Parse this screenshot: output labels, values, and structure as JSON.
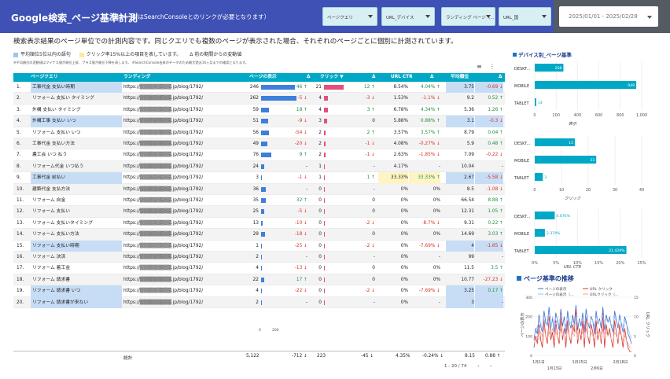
{
  "header": {
    "title": "Google検索_ページ基準計測",
    "subtitle": "（本ページはSearchConsoleとのリンクが必要となります）",
    "filters": [
      "ページクエリ",
      "URL_デバイス",
      "ランディング ページ（...",
      "URL_国"
    ],
    "date_range": "2025/01/01 - 2025/02/28"
  },
  "intro": "検索表示結果のページ単位での計測内容です。同じクエリでも複数のページが表示された場合、それぞれのページごとに個別に計測されています。",
  "legend": {
    "items": [
      {
        "label": "平均順位5位以内の語句",
        "color": "#9fc5f0"
      },
      {
        "label": "クリック率15%以上の項目を表しています。",
        "color": "#ffe89a"
      },
      {
        "label": "Δ 前の期間からの変動値",
        "color": ""
      }
    ],
    "note": "※平均順位の変動値はマイナス値が順位上昇、プラス値が順位下降を表します。 ※SearchConsole出来のデータのため最大過去16ヶ月までの確認となります。"
  },
  "table": {
    "headers": [
      "ページクエリ",
      "ランディング",
      "ページの表示",
      "Δ",
      "クリック ▼",
      "Δ",
      "URL CTR",
      "Δ",
      "平均順位",
      "Δ"
    ],
    "rows": [
      {
        "n": "1.",
        "q": "工事代金 支払い時期",
        "url": "https://▒▒▒▒▒▒▒▒▒.jp/blog/1792/",
        "imp": "246",
        "impd": "46 ↑",
        "clk": "21",
        "clkd": "12 ↑",
        "ctr": "8.54%",
        "ctrd": "4.04% ↑",
        "pos": "3.75",
        "posd": "-0.69 ↓",
        "qh": true,
        "ph": true,
        "ch": false
      },
      {
        "n": "2.",
        "q": "リフォーム 支払い タイミング",
        "url": "https://▒▒▒▒▒▒▒▒▒.jp/blog/1792/",
        "imp": "262",
        "impd": "-5 ↓",
        "clk": "4",
        "clkd": "-3 ↓",
        "ctr": "1.53%",
        "ctrd": "-1.1% ↓",
        "pos": "9.2",
        "posd": "0.52 ↑",
        "qh": false,
        "ph": false,
        "ch": false
      },
      {
        "n": "3.",
        "q": "外構 支払い タイミング",
        "url": "https://▒▒▒▒▒▒▒▒▒.jp/blog/1792/",
        "imp": "59",
        "impd": "18 ↑",
        "clk": "4",
        "clkd": "3 ↑",
        "ctr": "6.78%",
        "ctrd": "4.34% ↑",
        "pos": "5.36",
        "posd": "1.26 ↑",
        "qh": false,
        "ph": false,
        "ch": false
      },
      {
        "n": "4.",
        "q": "外構工事 支払い いつ",
        "url": "https://▒▒▒▒▒▒▒▒▒.jp/blog/1792/",
        "imp": "51",
        "impd": "-9 ↓",
        "clk": "3",
        "clkd": "0",
        "ctr": "5.88%",
        "ctrd": "0.88% ↑",
        "pos": "3.1",
        "posd": "-0.3 ↓",
        "qh": true,
        "ph": true,
        "ch": false
      },
      {
        "n": "5.",
        "q": "リフォーム 支払い いつ",
        "url": "https://▒▒▒▒▒▒▒▒▒.jp/blog/1792/",
        "imp": "56",
        "impd": "-54 ↓",
        "clk": "2",
        "clkd": "2 ↑",
        "ctr": "3.57%",
        "ctrd": "3.57% ↑",
        "pos": "8.79",
        "posd": "0.04 ↑",
        "qh": false,
        "ph": false,
        "ch": false
      },
      {
        "n": "6.",
        "q": "工事代金 支払い方法",
        "url": "https://▒▒▒▒▒▒▒▒▒.jp/blog/1792/",
        "imp": "49",
        "impd": "-20 ↓",
        "clk": "2",
        "clkd": "-1 ↓",
        "ctr": "4.08%",
        "ctrd": "-0.27% ↓",
        "pos": "5.9",
        "posd": "0.48 ↑",
        "qh": false,
        "ph": false,
        "ch": false
      },
      {
        "n": "7.",
        "q": "農工会 いつ 払う",
        "url": "https://▒▒▒▒▒▒▒▒▒.jp/blog/1792/",
        "imp": "76",
        "impd": "9 ↑",
        "clk": "2",
        "clkd": "-1 ↓",
        "ctr": "2.63%",
        "ctrd": "-1.85% ↓",
        "pos": "7.09",
        "posd": "-0.22 ↓",
        "qh": false,
        "ph": false,
        "ch": false
      },
      {
        "n": "8.",
        "q": "リフォーム代金 いつ払う",
        "url": "https://▒▒▒▒▒▒▒▒▒.jp/blog/1792/",
        "imp": "24",
        "impd": "-",
        "clk": "1",
        "clkd": "-",
        "ctr": "4.17%",
        "ctrd": "-",
        "pos": "10.04",
        "posd": "-",
        "qh": false,
        "ph": false,
        "ch": false
      },
      {
        "n": "9.",
        "q": "工事代金 前払い",
        "url": "https://▒▒▒▒▒▒▒▒▒.jp/blog/1792/",
        "imp": "3",
        "impd": "-1 ↓",
        "clk": "1",
        "clkd": "1 ↑",
        "ctr": "33.33%",
        "ctrd": "33.33% ↑",
        "pos": "2.67",
        "posd": "-5.58 ↓",
        "qh": true,
        "ph": true,
        "ch": true
      },
      {
        "n": "10.",
        "q": "建築代金 支払方法",
        "url": "https://▒▒▒▒▒▒▒▒▒.jp/blog/1792/",
        "imp": "36",
        "impd": "-",
        "clk": "0",
        "clkd": "-",
        "ctr": "0%",
        "ctrd": "0%",
        "pos": "8.5",
        "posd": "-1.08 ↓",
        "qh": false,
        "ph": false,
        "ch": false
      },
      {
        "n": "11.",
        "q": "リフォーム 自金",
        "url": "https://▒▒▒▒▒▒▒▒▒.jp/blog/1792/",
        "imp": "35",
        "impd": "32 ↑",
        "clk": "0",
        "clkd": "0",
        "ctr": "0%",
        "ctrd": "0%",
        "pos": "66.54",
        "posd": "8.88 ↑",
        "qh": false,
        "ph": false,
        "ch": false
      },
      {
        "n": "12.",
        "q": "リフォーム 支払い",
        "url": "https://▒▒▒▒▒▒▒▒▒.jp/blog/1792/",
        "imp": "25",
        "impd": "-5 ↓",
        "clk": "0",
        "clkd": "0",
        "ctr": "0%",
        "ctrd": "0%",
        "pos": "12.31",
        "posd": "1.05 ↑",
        "qh": false,
        "ph": false,
        "ch": false
      },
      {
        "n": "13.",
        "q": "リフォーム 支払いタイミング",
        "url": "https://▒▒▒▒▒▒▒▒▒.jp/blog/1792/",
        "imp": "13",
        "impd": "-10 ↓",
        "clk": "0",
        "clkd": "-2 ↓",
        "ctr": "0%",
        "ctrd": "-8.7% ↓",
        "pos": "9.31",
        "posd": "0.22 ↑",
        "qh": false,
        "ph": false,
        "ch": false
      },
      {
        "n": "14.",
        "q": "リフォーム 支払い方法",
        "url": "https://▒▒▒▒▒▒▒▒▒.jp/blog/1792/",
        "imp": "29",
        "impd": "-18 ↓",
        "clk": "0",
        "clkd": "0",
        "ctr": "0%",
        "ctrd": "0%",
        "pos": "14.69",
        "posd": "3.03 ↑",
        "qh": false,
        "ph": false,
        "ch": false
      },
      {
        "n": "15.",
        "q": "リフォーム 支払い時期",
        "url": "https://▒▒▒▒▒▒▒▒▒.jp/blog/1792/",
        "imp": "1",
        "impd": "-25 ↓",
        "clk": "0",
        "clkd": "-2 ↓",
        "ctr": "0%",
        "ctrd": "-7.69% ↓",
        "pos": "4",
        "posd": "-1.65 ↓",
        "qh": true,
        "ph": true,
        "ch": false
      },
      {
        "n": "16.",
        "q": "リフォーム 決済",
        "url": "https://▒▒▒▒▒▒▒▒▒.jp/blog/1792/",
        "imp": "2",
        "impd": "-",
        "clk": "0",
        "clkd": "-",
        "ctr": "0%",
        "ctrd": "-",
        "pos": "99",
        "posd": "-",
        "qh": false,
        "ph": false,
        "ch": false
      },
      {
        "n": "17.",
        "q": "リフォーム 着工金",
        "url": "https://▒▒▒▒▒▒▒▒▒.jp/blog/1792/",
        "imp": "4",
        "impd": "-13 ↓",
        "clk": "0",
        "clkd": "0",
        "ctr": "0%",
        "ctrd": "0%",
        "pos": "11.5",
        "posd": "3.5 ↑",
        "qh": false,
        "ph": false,
        "ch": false
      },
      {
        "n": "18.",
        "q": "リフォーム 請求書",
        "url": "https://▒▒▒▒▒▒▒▒▒.jp/blog/1792/",
        "imp": "22",
        "impd": "17 ↑",
        "clk": "0",
        "clkd": "0",
        "ctr": "0%",
        "ctrd": "0%",
        "pos": "10.77",
        "posd": "-27.23 ↓",
        "qh": false,
        "ph": false,
        "ch": false
      },
      {
        "n": "19.",
        "q": "リフォーム 請求書 いつ",
        "url": "https://▒▒▒▒▒▒▒▒▒.jp/blog/1792/",
        "imp": "4",
        "impd": "-22 ↓",
        "clk": "0",
        "clkd": "-2 ↓",
        "ctr": "0%",
        "ctrd": "-7.69% ↓",
        "pos": "3.25",
        "posd": "0.17 ↑",
        "qh": true,
        "ph": true,
        "ch": false
      },
      {
        "n": "20.",
        "q": "リフォーム 請求書が来ない",
        "url": "https://▒▒▒▒▒▒▒▒▒.jp/blog/1792/",
        "imp": "2",
        "impd": "-",
        "clk": "0",
        "clkd": "-",
        "ctr": "0%",
        "ctrd": "-",
        "pos": "3",
        "posd": "-",
        "qh": true,
        "ph": true,
        "ch": false
      }
    ],
    "axis_ticks": [
      "0",
      "200"
    ],
    "totals": {
      "label": "総計",
      "imp": "5,122",
      "impd": "-712 ↓",
      "clk": "223",
      "clkd": "-45 ↓",
      "ctr": "4.35%",
      "ctrd": "-0.24% ↓",
      "pos": "8.15",
      "posd": "0.88 ↑"
    },
    "pager": "1 - 20 / 74"
  },
  "chart_data": [
    {
      "type": "bar",
      "title": "デバイス別_ページ基準",
      "xlabel": "表示",
      "categories": [
        "DESKT...",
        "MOBILE",
        "TABLET"
      ],
      "values": [
        268,
        949,
        14
      ],
      "value_labels": [
        "268",
        "949",
        "14"
      ],
      "xlim": [
        0,
        1000
      ],
      "ticks": [
        "0",
        "200",
        "400",
        "600",
        "800",
        "1,000"
      ],
      "color": "#00a8c6"
    },
    {
      "type": "bar",
      "xlabel": "クリック",
      "categories": [
        "DESKT...",
        "MOBILE",
        "TABLET"
      ],
      "values": [
        15,
        23,
        3
      ],
      "value_labels": [
        "15",
        "23",
        "3"
      ],
      "xlim": [
        0,
        40
      ],
      "ticks": [
        "0",
        "10",
        "20",
        "30",
        "40"
      ],
      "color": "#00a8c6"
    },
    {
      "type": "bar",
      "xlabel": "URL CTR",
      "categories": [
        "DESKT...",
        "MOBILE",
        "TABLET"
      ],
      "values": [
        4.676,
        2.374,
        21.429
      ],
      "value_labels": [
        "4.676%",
        "2.374%",
        "21.429%"
      ],
      "xlim": [
        0,
        25
      ],
      "ticks": [
        "0%",
        "5%",
        "10%",
        "15%",
        "20%",
        "25%"
      ],
      "color": "#00a8c6"
    },
    {
      "type": "line",
      "title": "ページ基準の推移",
      "ylabel": "ページの表示",
      "y2label": "URL クリック",
      "x_ticks": [
        "1月1日",
        "1月13日",
        "1月25日",
        "2月6日",
        "2月18日"
      ],
      "ylim": [
        0,
        300
      ],
      "y_ticks": [
        "0",
        "100",
        "200",
        "300"
      ],
      "y2lim": [
        0,
        15
      ],
      "y2_ticks": [
        "0",
        "5",
        "10",
        "15"
      ],
      "series": [
        {
          "name": "ページの表示",
          "axis": "left",
          "color": "#3d6fd6",
          "values": [
            80,
            140,
            110,
            210,
            150,
            120,
            230,
            170,
            160,
            250,
            140,
            190,
            120,
            220,
            180,
            130,
            240,
            150,
            200,
            110,
            230,
            170,
            140,
            210,
            160,
            260,
            130,
            190,
            150,
            220,
            120,
            240,
            170,
            140,
            200,
            180,
            110,
            230,
            160,
            190,
            140,
            250,
            130,
            210,
            170,
            200,
            150,
            120,
            230,
            180,
            140,
            210,
            160,
            120,
            200,
            170,
            110,
            90,
            60
          ]
        },
        {
          "name": "URL クリック",
          "axis": "right",
          "color": "#d93025",
          "values": [
            2,
            5,
            3,
            8,
            4,
            2,
            9,
            5,
            3,
            10,
            4,
            6,
            2,
            9,
            5,
            3,
            11,
            4,
            7,
            2,
            9,
            5,
            3,
            8,
            6,
            12,
            3,
            7,
            4,
            9,
            2,
            10,
            5,
            3,
            8,
            6,
            2,
            9,
            4,
            7,
            3,
            11,
            2,
            8,
            5,
            7,
            4,
            2,
            9,
            6,
            3,
            8,
            5,
            2,
            7,
            4,
            2,
            1,
            1
          ]
        },
        {
          "name": "ページの表示（...",
          "axis": "left",
          "color": "#9fbef0",
          "values": [
            100,
            120,
            150,
            130,
            170,
            140,
            190,
            160,
            150,
            180,
            130,
            200,
            170,
            160,
            190,
            150,
            210,
            170,
            180,
            150,
            200,
            160,
            170,
            190,
            150,
            210,
            160,
            180,
            170,
            190,
            150,
            200,
            170,
            160,
            190,
            180,
            150,
            200,
            170,
            180,
            160,
            210,
            150,
            190,
            170,
            180,
            160,
            150,
            200,
            170,
            160,
            190,
            170,
            150,
            180,
            160,
            140,
            110,
            90
          ]
        },
        {
          "name": "URLクリック（...",
          "axis": "right",
          "color": "#f2a6a0",
          "values": [
            3,
            4,
            5,
            4,
            6,
            5,
            7,
            5,
            4,
            6,
            5,
            7,
            4,
            6,
            5,
            4,
            7,
            5,
            6,
            4,
            7,
            5,
            4,
            6,
            5,
            7,
            4,
            6,
            5,
            6,
            4,
            7,
            5,
            4,
            6,
            5,
            4,
            6,
            5,
            6,
            4,
            7,
            4,
            6,
            5,
            6,
            4,
            4,
            6,
            5,
            4,
            6,
            5,
            4,
            5,
            4,
            3,
            2,
            2
          ]
        }
      ]
    }
  ]
}
